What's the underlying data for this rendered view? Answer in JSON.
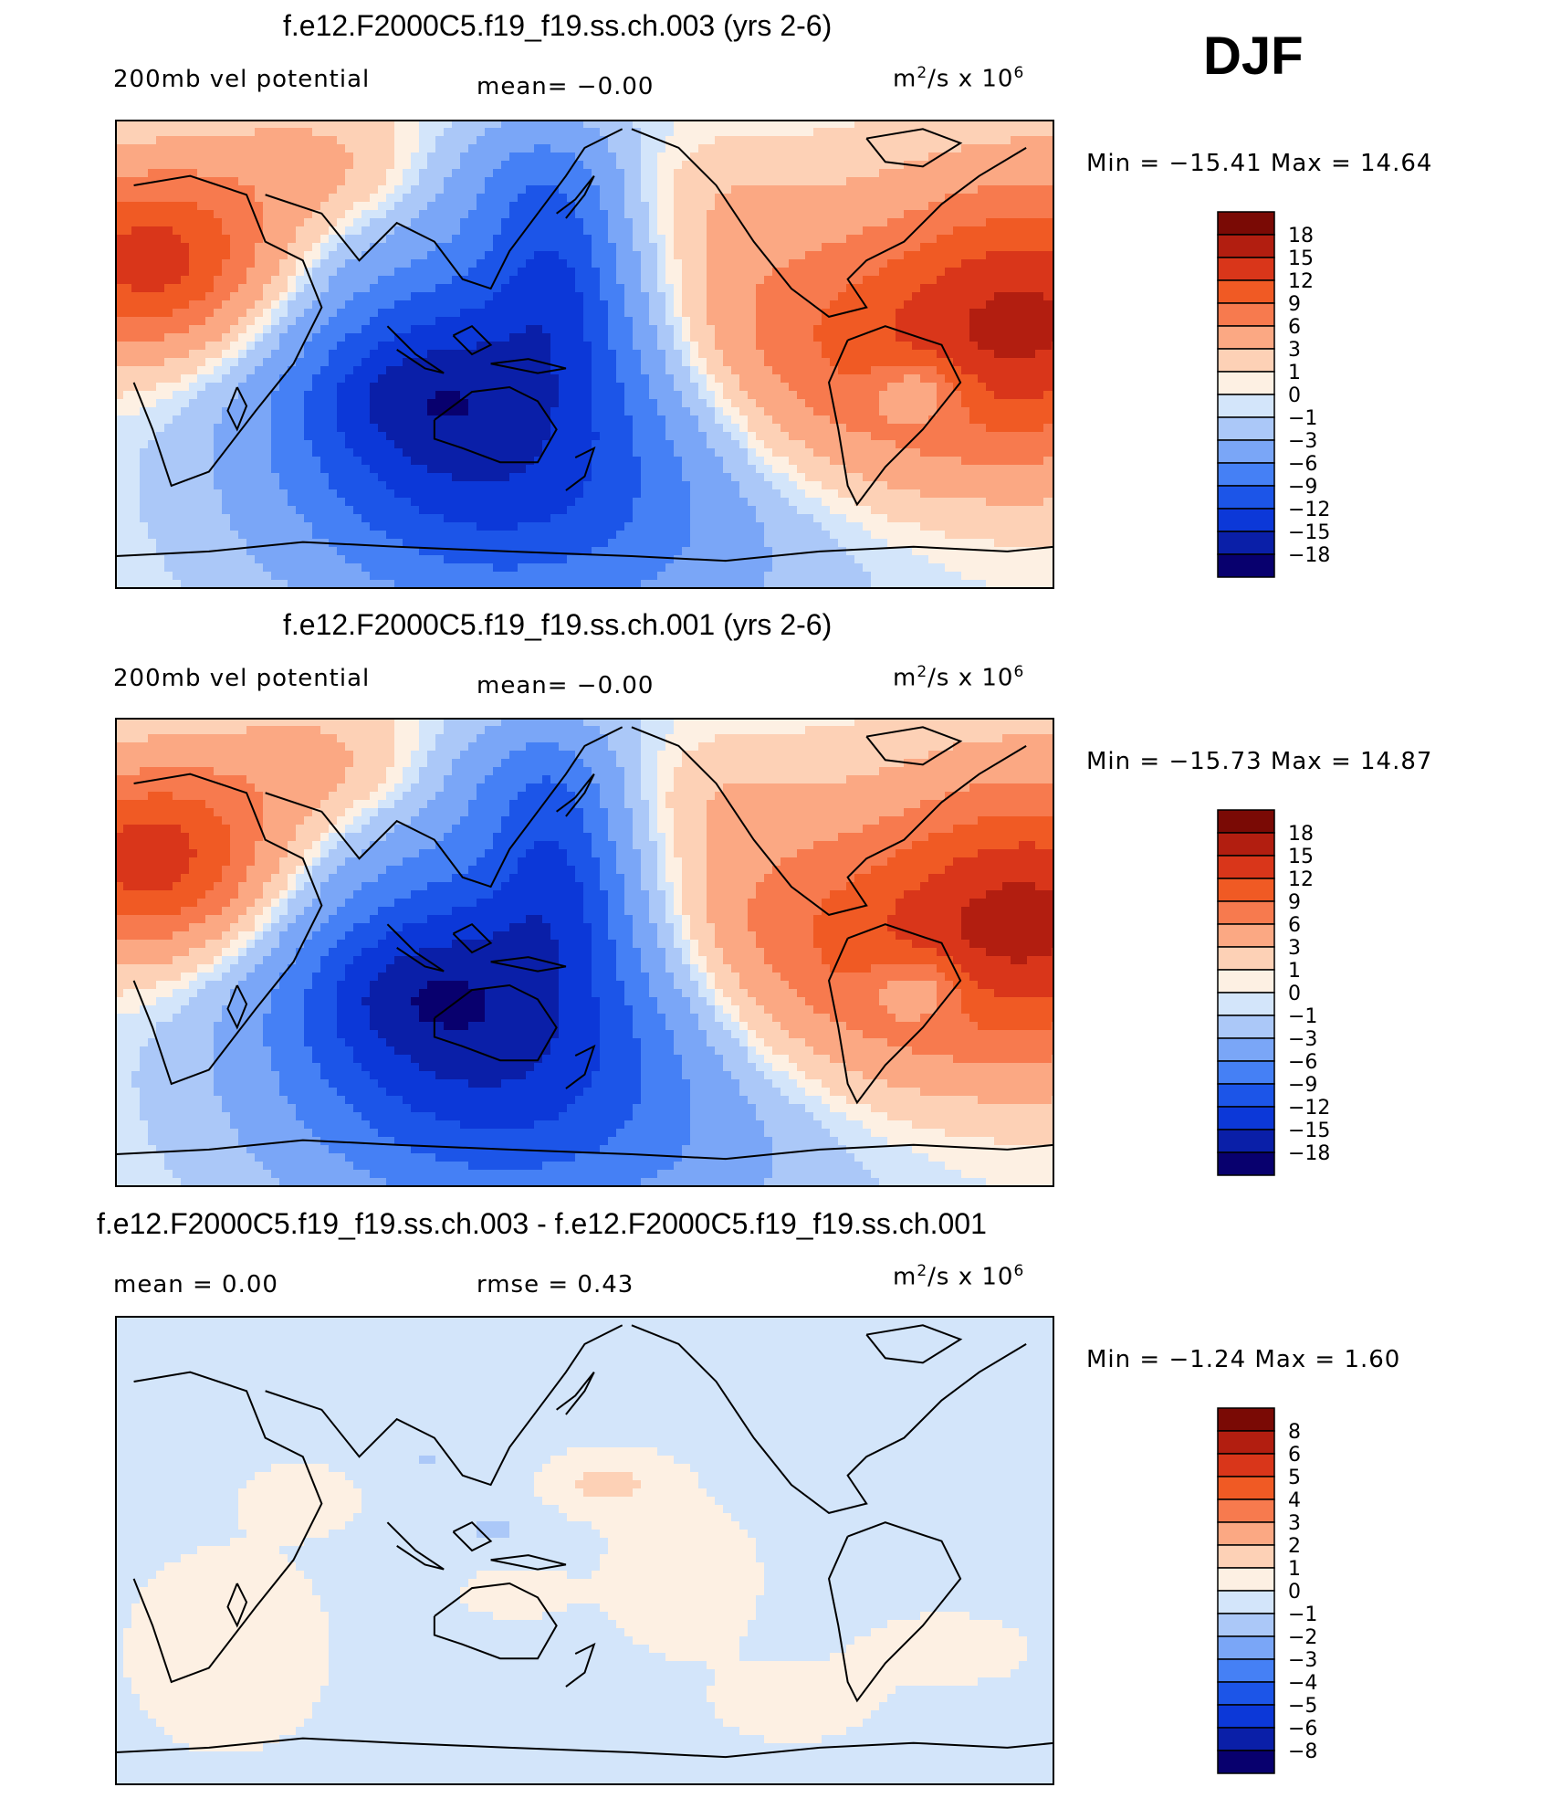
{
  "season": "DJF",
  "colors": {
    "levels": [
      "#08006e",
      "#0a1fa8",
      "#0c38d8",
      "#1c55e8",
      "#4580f5",
      "#7aa6f7",
      "#abc8f8",
      "#d3e5fa",
      "#fdf0e3",
      "#fdd1b6",
      "#fba883",
      "#f77a4e",
      "#f05a24",
      "#d9361a",
      "#b21e10",
      "#7a0a05"
    ],
    "coast": "#000000"
  },
  "chart_data": [
    {
      "type": "contour-map",
      "title": "f.e12.F2000C5.f19_f19.ss.ch.003 (yrs 2-6)",
      "left_label": "200mb vel potential",
      "center_label": "mean=   −0.00",
      "units_base": "m",
      "units_exp": "2",
      "units_rest": "/s x 10",
      "units_exp2": "6",
      "minmax": "Min = −15.41 Max =   14.64",
      "min": -15.41,
      "max": 14.64,
      "colorbar_levels": [
        "18",
        "15",
        "12",
        "9",
        "6",
        "3",
        "1",
        "0",
        "−1",
        "−3",
        "−6",
        "−9",
        "−12",
        "−15",
        "−18"
      ],
      "scale": 1.0
    },
    {
      "type": "contour-map",
      "title": "f.e12.F2000C5.f19_f19.ss.ch.001 (yrs 2-6)",
      "left_label": "200mb vel potential",
      "center_label": "mean=   −0.00",
      "units_base": "m",
      "units_exp": "2",
      "units_rest": "/s x 10",
      "units_exp2": "6",
      "minmax": "Min = −15.73 Max =   14.87",
      "min": -15.73,
      "max": 14.87,
      "colorbar_levels": [
        "18",
        "15",
        "12",
        "9",
        "6",
        "3",
        "1",
        "0",
        "−1",
        "−3",
        "−6",
        "−9",
        "−12",
        "−15",
        "−18"
      ],
      "scale": 1.02
    },
    {
      "type": "contour-map-difference",
      "title": "f.e12.F2000C5.f19_f19.ss.ch.003 - f.e12.F2000C5.f19_f19.ss.ch.001",
      "left_label": "mean =    0.00",
      "center_label": "rmse =    0.43",
      "units_base": "m",
      "units_exp": "2",
      "units_rest": "/s x 10",
      "units_exp2": "6",
      "minmax": "Min =  −1.24 Max =    1.60",
      "min": -1.24,
      "max": 1.6,
      "colorbar_levels": [
        "8",
        "6",
        "5",
        "4",
        "3",
        "2",
        "1",
        "0",
        "−1",
        "−2",
        "−3",
        "−4",
        "−5",
        "−6",
        "−8"
      ]
    }
  ]
}
